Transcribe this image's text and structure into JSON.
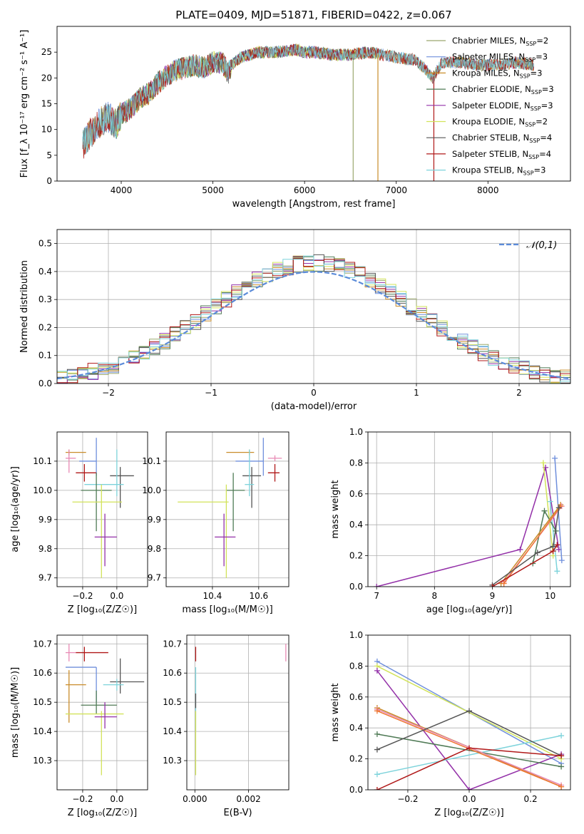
{
  "figure": {
    "title": "PLATE=0409, MJD=51871, FIBERID=0422, z=0.067"
  },
  "chart_data": [
    {
      "id": "spectrum",
      "type": "line",
      "xlabel": "wavelength [Angstrom, rest frame]",
      "ylabel": "Flux [f_λ 10⁻¹⁷ erg cm⁻² s⁻¹ A⁻¹]",
      "xlim": [
        3300,
        8900
      ],
      "ylim": [
        0,
        30
      ],
      "xticks": [
        4000,
        5000,
        6000,
        7000,
        8000
      ],
      "yticks": [
        0,
        5,
        10,
        15,
        20,
        25
      ],
      "grid": false,
      "legend_position": "top-right",
      "continuum_nodes": [
        [
          3580,
          7
        ],
        [
          3650,
          9
        ],
        [
          3750,
          11
        ],
        [
          3850,
          12.5
        ],
        [
          3950,
          11
        ],
        [
          4000,
          13
        ],
        [
          4100,
          14
        ],
        [
          4200,
          16
        ],
        [
          4300,
          17
        ],
        [
          4400,
          19
        ],
        [
          4500,
          20.5
        ],
        [
          4600,
          21.5
        ],
        [
          4700,
          22
        ],
        [
          4800,
          22.5
        ],
        [
          4900,
          22
        ],
        [
          5000,
          23
        ],
        [
          5100,
          23
        ],
        [
          5170,
          21
        ],
        [
          5200,
          22.5
        ],
        [
          5300,
          24
        ],
        [
          5500,
          25
        ],
        [
          5700,
          25
        ],
        [
          5900,
          25.5
        ],
        [
          6000,
          25
        ],
        [
          6100,
          25
        ],
        [
          6300,
          24.5
        ],
        [
          6500,
          24.5
        ],
        [
          6700,
          25
        ],
        [
          7000,
          24
        ],
        [
          7200,
          23.5
        ],
        [
          7300,
          22
        ],
        [
          7400,
          20
        ],
        [
          7500,
          23
        ],
        [
          7700,
          23
        ],
        [
          7900,
          22.5
        ],
        [
          8100,
          22.5
        ],
        [
          8300,
          23
        ],
        [
          8500,
          22.5
        ]
      ],
      "absorption_features": [
        {
          "x": 6530,
          "series": "Chabrier MILES, N_SSP=2",
          "y_min": 0
        },
        {
          "x": 6800,
          "series": "Kroupa MILES, N_SSP=3",
          "y_min": 0
        },
        {
          "x": 7410,
          "series": "Salpeter STELIB, N_SSP=4",
          "y_min": 0
        }
      ],
      "series": [
        {
          "name": "Chabrier MILES, N_SSP=2",
          "color": "#9aa86e",
          "x_range": [
            3580,
            8500
          ]
        },
        {
          "name": "Salpeter MILES, N_SSP=3",
          "color": "#6f8fdc",
          "x_range": [
            3580,
            8500
          ]
        },
        {
          "name": "Kroupa MILES, N_SSP=3",
          "color": "#c98c2a",
          "x_range": [
            3580,
            8500
          ]
        },
        {
          "name": "Chabrier ELODIE, N_SSP=3",
          "color": "#4f7a55",
          "x_range": [
            3900,
            6800
          ]
        },
        {
          "name": "Salpeter ELODIE, N_SSP=3",
          "color": "#9330a8",
          "x_range": [
            3900,
            6800
          ]
        },
        {
          "name": "Kroupa ELODIE, N_SSP=2",
          "color": "#d2e35a",
          "x_range": [
            3900,
            6800
          ]
        },
        {
          "name": "Chabrier STELIB, N_SSP=4",
          "color": "#555555",
          "x_range": [
            3580,
            8500
          ]
        },
        {
          "name": "Salpeter STELIB, N_SSP=4",
          "color": "#b01818",
          "x_range": [
            3580,
            8500
          ]
        },
        {
          "name": "Kroupa STELIB, N_SSP=3",
          "color": "#7dd3db",
          "x_range": [
            3580,
            8500
          ]
        }
      ]
    },
    {
      "id": "residual_hist",
      "type": "histogram",
      "xlabel": "(data-model)/error",
      "ylabel": "Normed distribution",
      "xlim": [
        -2.5,
        2.5
      ],
      "ylim": [
        0,
        0.55
      ],
      "xticks": [
        -2,
        -1,
        0,
        1,
        2
      ],
      "yticks": [
        0.0,
        0.1,
        0.2,
        0.3,
        0.4,
        0.5
      ],
      "grid": true,
      "legend_position": "top-right",
      "legend": "𝒩(0,1)",
      "bins": {
        "start": -2.5,
        "width": 0.1,
        "count": 50
      },
      "series": [
        {
          "name": "Chabrier MILES, N_SSP=2",
          "color": "#9aa86e"
        },
        {
          "name": "Salpeter MILES, N_SSP=3",
          "color": "#6f8fdc"
        },
        {
          "name": "Kroupa MILES, N_SSP=3",
          "color": "#c98c2a"
        },
        {
          "name": "Chabrier ELODIE, N_SSP=3",
          "color": "#4f7a55"
        },
        {
          "name": "Salpeter ELODIE, N_SSP=3",
          "color": "#9330a8"
        },
        {
          "name": "Kroupa ELODIE, N_SSP=2",
          "color": "#d2e35a"
        },
        {
          "name": "Chabrier STELIB, N_SSP=4",
          "color": "#555555"
        },
        {
          "name": "Salpeter STELIB, N_SSP=4",
          "color": "#b01818"
        },
        {
          "name": "Kroupa STELIB, N_SSP=3",
          "color": "#7dd3db"
        }
      ],
      "gaussian": {
        "mean": 0,
        "sigma": 1,
        "color": "#5b8bd9"
      }
    },
    {
      "id": "age_vs_Z",
      "type": "errorbar",
      "xlabel": "Z [log₁₀(Z/Z☉)]",
      "ylabel": "age  [log₁₀(age/yr)]",
      "xlim": [
        -0.35,
        0.18
      ],
      "ylim": [
        9.67,
        10.2
      ],
      "xticks": [
        -0.2,
        0.0
      ],
      "yticks": [
        9.7,
        9.8,
        9.9,
        10.0,
        10.1
      ],
      "grid": true,
      "points": [
        {
          "color": "#c98c2a",
          "x": -0.28,
          "xl": -0.3,
          "xh": -0.18,
          "y": 10.13,
          "yl": 10.12,
          "yh": 10.14
        },
        {
          "color": "#e88ab4",
          "x": -0.28,
          "xl": -0.3,
          "xh": -0.24,
          "y": 10.11,
          "yl": 10.06,
          "yh": 10.14
        },
        {
          "color": "#6f8fdc",
          "x": -0.12,
          "xl": -0.22,
          "xh": -0.12,
          "y": 10.1,
          "yl": 10.05,
          "yh": 10.18
        },
        {
          "color": "#b01818",
          "x": -0.19,
          "xl": -0.24,
          "xh": -0.12,
          "y": 10.06,
          "yl": 10.03,
          "yh": 10.09
        },
        {
          "color": "#555555",
          "x": 0.02,
          "xl": -0.04,
          "xh": 0.1,
          "y": 10.05,
          "yl": 9.94,
          "yh": 10.08
        },
        {
          "color": "#7dd3db",
          "x": 0.0,
          "xl": -0.19,
          "xh": 0.04,
          "y": 10.02,
          "yl": 9.98,
          "yh": 10.14
        },
        {
          "color": "#4f7a55",
          "x": -0.12,
          "xl": -0.21,
          "xh": -0.03,
          "y": 10.0,
          "yl": 9.86,
          "yh": 10.06
        },
        {
          "color": "#d2e35a",
          "x": -0.09,
          "xl": -0.26,
          "xh": 0.03,
          "y": 9.96,
          "yl": 9.7,
          "yh": 10.02
        },
        {
          "color": "#9330a8",
          "x": -0.07,
          "xl": -0.13,
          "xh": 0.0,
          "y": 9.84,
          "yl": 9.74,
          "yh": 9.92
        }
      ]
    },
    {
      "id": "age_vs_mass",
      "type": "errorbar",
      "xlabel": "mass [log₁₀(M/M☉)]",
      "ylabel": "",
      "xlim": [
        10.2,
        10.73
      ],
      "ylim": [
        9.67,
        10.2
      ],
      "xticks": [
        10.4,
        10.6
      ],
      "yticks": [
        9.7,
        9.8,
        9.9,
        10.0,
        10.1
      ],
      "grid": true,
      "points": [
        {
          "color": "#c98c2a",
          "x": 10.56,
          "xl": 10.46,
          "xh": 10.58,
          "y": 10.13,
          "yl": 10.12,
          "yh": 10.14
        },
        {
          "color": "#e88ab4",
          "x": 10.67,
          "xl": 10.64,
          "xh": 10.7,
          "y": 10.11,
          "yl": 10.1,
          "yh": 10.12
        },
        {
          "color": "#6f8fdc",
          "x": 10.62,
          "xl": 10.5,
          "xh": 10.62,
          "y": 10.1,
          "yl": 10.05,
          "yh": 10.18
        },
        {
          "color": "#b01818",
          "x": 10.67,
          "xl": 10.64,
          "xh": 10.69,
          "y": 10.06,
          "yl": 10.03,
          "yh": 10.09
        },
        {
          "color": "#555555",
          "x": 10.57,
          "xl": 10.53,
          "xh": 10.61,
          "y": 10.05,
          "yl": 9.94,
          "yh": 10.08
        },
        {
          "color": "#7dd3db",
          "x": 10.56,
          "xl": 10.54,
          "xh": 10.58,
          "y": 10.02,
          "yl": 9.98,
          "yh": 10.14
        },
        {
          "color": "#4f7a55",
          "x": 10.49,
          "xl": 10.46,
          "xh": 10.54,
          "y": 10.0,
          "yl": 9.86,
          "yh": 10.06
        },
        {
          "color": "#d2e35a",
          "x": 10.46,
          "xl": 10.25,
          "xh": 10.47,
          "y": 9.96,
          "yl": 9.7,
          "yh": 10.02
        },
        {
          "color": "#9330a8",
          "x": 10.45,
          "xl": 10.41,
          "xh": 10.5,
          "y": 9.84,
          "yl": 9.74,
          "yh": 9.92
        }
      ]
    },
    {
      "id": "weight_vs_age",
      "type": "line",
      "xlabel": "age  [log₁₀(age/yr)]",
      "ylabel": "mass weight",
      "xlim": [
        6.85,
        10.35
      ],
      "ylim": [
        0,
        1.0
      ],
      "xticks": [
        7,
        8,
        9,
        10
      ],
      "yticks": [
        0.0,
        0.2,
        0.4,
        0.6,
        0.8,
        1.0
      ],
      "grid": true,
      "series": [
        {
          "color": "#9330a8",
          "x": [
            7.0,
            9.48,
            9.92,
            10.15
          ],
          "y": [
            0.0,
            0.24,
            0.77,
            0.24
          ]
        },
        {
          "color": "#d2e35a",
          "x": [
            9.88,
            10.05
          ],
          "y": [
            0.8,
            0.2
          ]
        },
        {
          "color": "#6f8fdc",
          "x": [
            10.08,
            10.2
          ],
          "y": [
            0.83,
            0.17
          ]
        },
        {
          "color": "#7dd3db",
          "x": [
            10.0,
            10.12
          ],
          "y": [
            0.55,
            0.1
          ]
        },
        {
          "color": "#4f7a55",
          "x": [
            9.7,
            9.9,
            10.1
          ],
          "y": [
            0.15,
            0.49,
            0.36
          ]
        },
        {
          "color": "#c98c2a",
          "x": [
            9.15,
            10.18
          ],
          "y": [
            0.02,
            0.53
          ]
        },
        {
          "color": "#e88ab4",
          "x": [
            9.2,
            10.2
          ],
          "y": [
            0.03,
            0.52
          ]
        },
        {
          "color": "#ee7733",
          "x": [
            9.2,
            10.18
          ],
          "y": [
            0.02,
            0.52
          ]
        },
        {
          "color": "#555555",
          "x": [
            9.0,
            9.78,
            10.05,
            10.15
          ],
          "y": [
            0.01,
            0.22,
            0.26,
            0.51
          ]
        },
        {
          "color": "#b01818",
          "x": [
            9.0,
            10.05,
            10.12
          ],
          "y": [
            0.0,
            0.23,
            0.27
          ]
        }
      ]
    },
    {
      "id": "mass_vs_Z",
      "type": "errorbar",
      "xlabel": "Z [log₁₀(Z/Z☉)]",
      "ylabel": "mass [log₁₀(M/M☉)]",
      "xlim": [
        -0.35,
        0.18
      ],
      "ylim": [
        10.2,
        10.73
      ],
      "xticks": [
        -0.2,
        0.0
      ],
      "yticks": [
        10.3,
        10.4,
        10.5,
        10.6,
        10.7
      ],
      "grid": true,
      "points": [
        {
          "color": "#e88ab4",
          "x": -0.28,
          "xl": -0.3,
          "xh": -0.24,
          "y": 10.67,
          "yl": 10.64,
          "yh": 10.7
        },
        {
          "color": "#b01818",
          "x": -0.19,
          "xl": -0.24,
          "xh": -0.05,
          "y": 10.67,
          "yl": 10.64,
          "yh": 10.69
        },
        {
          "color": "#6f8fdc",
          "x": -0.12,
          "xl": -0.3,
          "xh": -0.12,
          "y": 10.62,
          "yl": 10.5,
          "yh": 10.62
        },
        {
          "color": "#555555",
          "x": 0.02,
          "xl": -0.04,
          "xh": 0.16,
          "y": 10.57,
          "yl": 10.53,
          "yh": 10.65
        },
        {
          "color": "#7dd3db",
          "x": 0.0,
          "xl": -0.08,
          "xh": 0.04,
          "y": 10.56,
          "yl": 10.54,
          "yh": 10.58
        },
        {
          "color": "#c98c2a",
          "x": -0.28,
          "xl": -0.3,
          "xh": -0.18,
          "y": 10.56,
          "yl": 10.43,
          "yh": 10.61
        },
        {
          "color": "#4f7a55",
          "x": -0.12,
          "xl": -0.21,
          "xh": 0.0,
          "y": 10.49,
          "yl": 10.46,
          "yh": 10.54
        },
        {
          "color": "#d2e35a",
          "x": -0.09,
          "xl": -0.3,
          "xh": 0.04,
          "y": 10.46,
          "yl": 10.25,
          "yh": 10.47
        },
        {
          "color": "#9330a8",
          "x": -0.07,
          "xl": -0.13,
          "xh": 0.0,
          "y": 10.45,
          "yl": 10.41,
          "yh": 10.5
        }
      ]
    },
    {
      "id": "mass_vs_ebv",
      "type": "errorbar",
      "xlabel": "E(B-V)",
      "ylabel": "",
      "xlim": [
        -0.0003,
        0.0035
      ],
      "ylim": [
        10.2,
        10.73
      ],
      "xticks": [
        0.0,
        0.002
      ],
      "yticks": [
        10.3,
        10.4,
        10.5,
        10.6,
        10.7
      ],
      "grid": true,
      "points": [
        {
          "color": "#b01818",
          "x": 3e-05,
          "xl": 3e-05,
          "xh": 3e-05,
          "y": 10.67,
          "yl": 10.64,
          "yh": 10.69
        },
        {
          "color": "#7dd3db",
          "x": 3e-05,
          "xl": 3e-05,
          "xh": 3e-05,
          "y": 10.56,
          "yl": 10.4,
          "yh": 10.62
        },
        {
          "color": "#555555",
          "x": 3e-05,
          "xl": 3e-05,
          "xh": 3e-05,
          "y": 10.5,
          "yl": 10.48,
          "yh": 10.53
        },
        {
          "color": "#d2e35a",
          "x": 3e-05,
          "xl": 3e-05,
          "xh": 3e-05,
          "y": 10.46,
          "yl": 10.25,
          "yh": 10.47
        },
        {
          "color": "#e88ab4",
          "x": 0.00339,
          "xl": 0.00339,
          "xh": 0.00339,
          "y": 10.67,
          "yl": 10.64,
          "yh": 10.7
        }
      ]
    },
    {
      "id": "weight_vs_Z",
      "type": "line",
      "xlabel": "Z [log₁₀(Z/Z☉)]",
      "ylabel": "mass weight",
      "xlim": [
        -0.33,
        0.33
      ],
      "ylim": [
        0,
        1.0
      ],
      "xticks": [
        -0.2,
        0.0,
        0.2
      ],
      "yticks": [
        0.0,
        0.2,
        0.4,
        0.6,
        0.8,
        1.0
      ],
      "grid": true,
      "series": [
        {
          "color": "#6f8fdc",
          "x": [
            -0.3,
            0.3
          ],
          "y": [
            0.83,
            0.17
          ]
        },
        {
          "color": "#d2e35a",
          "x": [
            -0.3,
            0.3
          ],
          "y": [
            0.8,
            0.2
          ]
        },
        {
          "color": "#9330a8",
          "x": [
            -0.3,
            0.0,
            0.3
          ],
          "y": [
            0.77,
            0.0,
            0.23
          ]
        },
        {
          "color": "#7dd3db",
          "x": [
            -0.3,
            0.3
          ],
          "y": [
            0.1,
            0.35
          ]
        },
        {
          "color": "#4f7a55",
          "x": [
            -0.3,
            0.3
          ],
          "y": [
            0.36,
            0.15
          ]
        },
        {
          "color": "#c98c2a",
          "x": [
            -0.3,
            0.3
          ],
          "y": [
            0.53,
            0.02
          ]
        },
        {
          "color": "#e88ab4",
          "x": [
            -0.3,
            0.3
          ],
          "y": [
            0.52,
            0.03
          ]
        },
        {
          "color": "#ee7733",
          "x": [
            -0.3,
            0.3
          ],
          "y": [
            0.51,
            0.02
          ]
        },
        {
          "color": "#555555",
          "x": [
            -0.3,
            0.0,
            0.3
          ],
          "y": [
            0.26,
            0.51,
            0.22
          ]
        },
        {
          "color": "#b01818",
          "x": [
            -0.3,
            0.0,
            0.3
          ],
          "y": [
            0.0,
            0.27,
            0.22
          ]
        }
      ]
    }
  ]
}
